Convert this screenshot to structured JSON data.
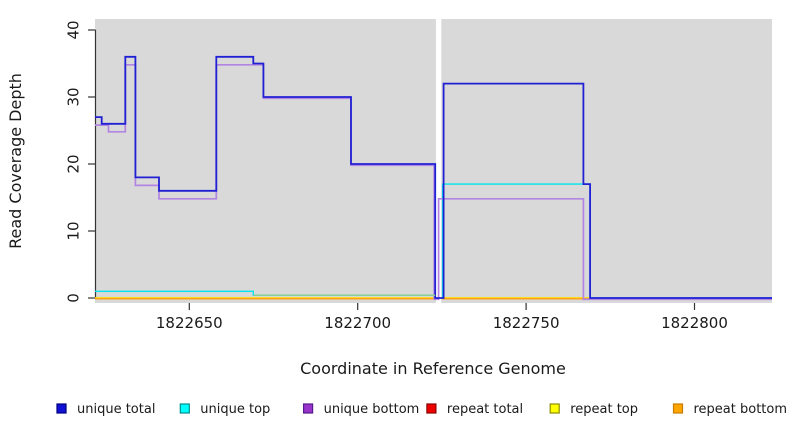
{
  "chart_data": {
    "type": "line",
    "subtype": "step",
    "title": "",
    "xlabel": "Coordinate in Reference Genome",
    "ylabel": "Read Coverage Depth",
    "xlim": [
      1822622,
      1822823
    ],
    "ylim": [
      0,
      41
    ],
    "x_ticks": [
      1822650,
      1822700,
      1822750,
      1822800
    ],
    "y_ticks": [
      0,
      10,
      20,
      30,
      40
    ],
    "grid": false,
    "plot_bg": "#d9d9d9",
    "axis_color": "#333333",
    "gap_band": {
      "x1": 1822723.2,
      "x2": 1822724.8,
      "color": "#ffffff"
    },
    "overlap_line": {
      "x1": 1822669,
      "x2": 1822723,
      "y": 0.4,
      "color": "#8fcc8f"
    },
    "legend_position": "bottom",
    "series": [
      {
        "name": "repeat total",
        "color": "#ee1111",
        "legend_fill": "#ee0000",
        "legend_border": "#8b0000",
        "width": 1.4,
        "yoff": 0,
        "segments": [
          [
            [
              1822622,
              0
            ],
            [
              1822723,
              0
            ]
          ],
          [
            [
              1822725,
              0
            ],
            [
              1822769,
              0
            ]
          ]
        ]
      },
      {
        "name": "repeat top",
        "color": "#ffff00",
        "legend_fill": "#ffff00",
        "legend_border": "#8b8b00",
        "width": 1.4,
        "yoff": 0,
        "segments": [
          [
            [
              1822622,
              0
            ],
            [
              1822723,
              0
            ]
          ],
          [
            [
              1822725,
              0
            ],
            [
              1822769,
              0
            ]
          ]
        ]
      },
      {
        "name": "repeat bottom",
        "color": "#ffa319",
        "legend_fill": "#ffa500",
        "legend_border": "#c87d00",
        "width": 1.5,
        "yoff": 0.8,
        "segments": [
          [
            [
              1822622,
              0
            ],
            [
              1822723,
              0
            ]
          ],
          [
            [
              1822725,
              0
            ],
            [
              1822769,
              0
            ]
          ]
        ]
      },
      {
        "name": "unique top",
        "color": "#00e5ee",
        "legend_fill": "#00ffff",
        "legend_border": "#008b8b",
        "width": 1.4,
        "yoff": 0,
        "segments": [
          [
            [
              1822622,
              1
            ],
            [
              1822669,
              0.4
            ],
            [
              1822723,
              0.4
            ]
          ],
          [
            [
              1822725,
              0
            ],
            [
              1822725.2,
              17
            ],
            [
              1822769,
              0
            ],
            [
              1822823,
              0
            ]
          ]
        ]
      },
      {
        "name": "unique bottom",
        "color": "#b285e2",
        "legend_fill": "#9933cc",
        "legend_border": "#551a8b",
        "width": 1.7,
        "yoff": 1.3,
        "segments": [
          [
            [
              1822622,
              26
            ],
            [
              1822626,
              25
            ],
            [
              1822631,
              35
            ],
            [
              1822634,
              17
            ],
            [
              1822641,
              15
            ],
            [
              1822658,
              35
            ],
            [
              1822672,
              30
            ],
            [
              1822698,
              20
            ],
            [
              1822722.7,
              0
            ],
            [
              1822724,
              15
            ],
            [
              1822767,
              0
            ],
            [
              1822823,
              0
            ]
          ]
        ]
      },
      {
        "name": "unique total",
        "color": "#2121d4",
        "legend_fill": "#1111d6",
        "legend_border": "#000080",
        "width": 1.8,
        "yoff": 0,
        "segments": [
          [
            [
              1822622,
              27
            ],
            [
              1822624,
              26
            ],
            [
              1822631,
              36
            ],
            [
              1822634,
              18
            ],
            [
              1822641,
              16
            ],
            [
              1822658,
              36
            ],
            [
              1822669,
              35
            ],
            [
              1822672,
              30
            ],
            [
              1822698,
              20
            ],
            [
              1822723,
              0
            ],
            [
              1822725.5,
              32
            ],
            [
              1822767,
              17
            ],
            [
              1822769,
              0
            ],
            [
              1822823,
              0
            ]
          ]
        ]
      }
    ],
    "legend": {
      "items": [
        {
          "label": "unique total",
          "fill": "#1111d6",
          "border": "#000080"
        },
        {
          "label": "unique top",
          "fill": "#00ffff",
          "border": "#008b8b"
        },
        {
          "label": "unique bottom",
          "fill": "#9933cc",
          "border": "#551a8b"
        },
        {
          "label": "repeat total",
          "fill": "#ee0000",
          "border": "#8b0000"
        },
        {
          "label": "repeat top",
          "fill": "#ffff00",
          "border": "#8b8b00"
        },
        {
          "label": "repeat bottom",
          "fill": "#ffa500",
          "border": "#c87d00"
        }
      ]
    }
  }
}
